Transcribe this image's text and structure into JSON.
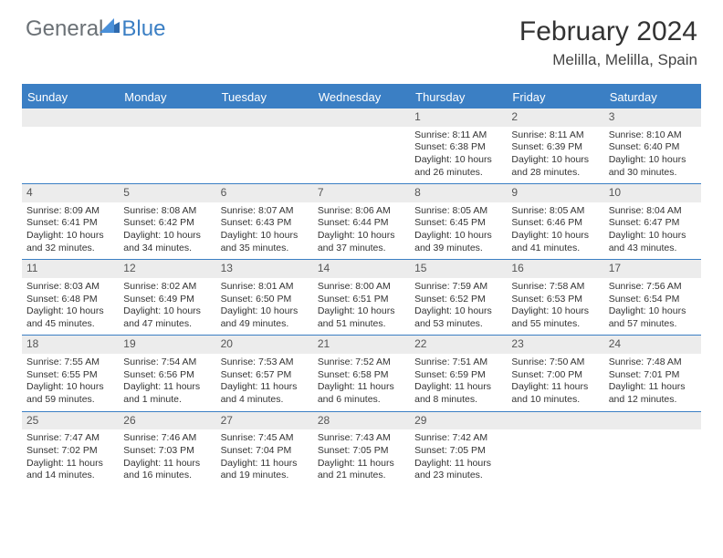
{
  "logo": {
    "text1": "General",
    "text2": "Blue"
  },
  "header": {
    "title": "February 2024",
    "location": "Melilla, Melilla, Spain"
  },
  "colors": {
    "accent": "#3b7fc4",
    "daynum_bg": "#ececec",
    "text": "#333333",
    "muted": "#6b7176"
  },
  "dayNames": [
    "Sunday",
    "Monday",
    "Tuesday",
    "Wednesday",
    "Thursday",
    "Friday",
    "Saturday"
  ],
  "firstWeekday": 4,
  "daysInMonth": 29,
  "days": {
    "1": {
      "sunrise": "8:11 AM",
      "sunset": "6:38 PM",
      "daylight": "10 hours and 26 minutes."
    },
    "2": {
      "sunrise": "8:11 AM",
      "sunset": "6:39 PM",
      "daylight": "10 hours and 28 minutes."
    },
    "3": {
      "sunrise": "8:10 AM",
      "sunset": "6:40 PM",
      "daylight": "10 hours and 30 minutes."
    },
    "4": {
      "sunrise": "8:09 AM",
      "sunset": "6:41 PM",
      "daylight": "10 hours and 32 minutes."
    },
    "5": {
      "sunrise": "8:08 AM",
      "sunset": "6:42 PM",
      "daylight": "10 hours and 34 minutes."
    },
    "6": {
      "sunrise": "8:07 AM",
      "sunset": "6:43 PM",
      "daylight": "10 hours and 35 minutes."
    },
    "7": {
      "sunrise": "8:06 AM",
      "sunset": "6:44 PM",
      "daylight": "10 hours and 37 minutes."
    },
    "8": {
      "sunrise": "8:05 AM",
      "sunset": "6:45 PM",
      "daylight": "10 hours and 39 minutes."
    },
    "9": {
      "sunrise": "8:05 AM",
      "sunset": "6:46 PM",
      "daylight": "10 hours and 41 minutes."
    },
    "10": {
      "sunrise": "8:04 AM",
      "sunset": "6:47 PM",
      "daylight": "10 hours and 43 minutes."
    },
    "11": {
      "sunrise": "8:03 AM",
      "sunset": "6:48 PM",
      "daylight": "10 hours and 45 minutes."
    },
    "12": {
      "sunrise": "8:02 AM",
      "sunset": "6:49 PM",
      "daylight": "10 hours and 47 minutes."
    },
    "13": {
      "sunrise": "8:01 AM",
      "sunset": "6:50 PM",
      "daylight": "10 hours and 49 minutes."
    },
    "14": {
      "sunrise": "8:00 AM",
      "sunset": "6:51 PM",
      "daylight": "10 hours and 51 minutes."
    },
    "15": {
      "sunrise": "7:59 AM",
      "sunset": "6:52 PM",
      "daylight": "10 hours and 53 minutes."
    },
    "16": {
      "sunrise": "7:58 AM",
      "sunset": "6:53 PM",
      "daylight": "10 hours and 55 minutes."
    },
    "17": {
      "sunrise": "7:56 AM",
      "sunset": "6:54 PM",
      "daylight": "10 hours and 57 minutes."
    },
    "18": {
      "sunrise": "7:55 AM",
      "sunset": "6:55 PM",
      "daylight": "10 hours and 59 minutes."
    },
    "19": {
      "sunrise": "7:54 AM",
      "sunset": "6:56 PM",
      "daylight": "11 hours and 1 minute."
    },
    "20": {
      "sunrise": "7:53 AM",
      "sunset": "6:57 PM",
      "daylight": "11 hours and 4 minutes."
    },
    "21": {
      "sunrise": "7:52 AM",
      "sunset": "6:58 PM",
      "daylight": "11 hours and 6 minutes."
    },
    "22": {
      "sunrise": "7:51 AM",
      "sunset": "6:59 PM",
      "daylight": "11 hours and 8 minutes."
    },
    "23": {
      "sunrise": "7:50 AM",
      "sunset": "7:00 PM",
      "daylight": "11 hours and 10 minutes."
    },
    "24": {
      "sunrise": "7:48 AM",
      "sunset": "7:01 PM",
      "daylight": "11 hours and 12 minutes."
    },
    "25": {
      "sunrise": "7:47 AM",
      "sunset": "7:02 PM",
      "daylight": "11 hours and 14 minutes."
    },
    "26": {
      "sunrise": "7:46 AM",
      "sunset": "7:03 PM",
      "daylight": "11 hours and 16 minutes."
    },
    "27": {
      "sunrise": "7:45 AM",
      "sunset": "7:04 PM",
      "daylight": "11 hours and 19 minutes."
    },
    "28": {
      "sunrise": "7:43 AM",
      "sunset": "7:05 PM",
      "daylight": "11 hours and 21 minutes."
    },
    "29": {
      "sunrise": "7:42 AM",
      "sunset": "7:05 PM",
      "daylight": "11 hours and 23 minutes."
    }
  },
  "labels": {
    "sunrise": "Sunrise:",
    "sunset": "Sunset:",
    "daylight": "Daylight:"
  }
}
